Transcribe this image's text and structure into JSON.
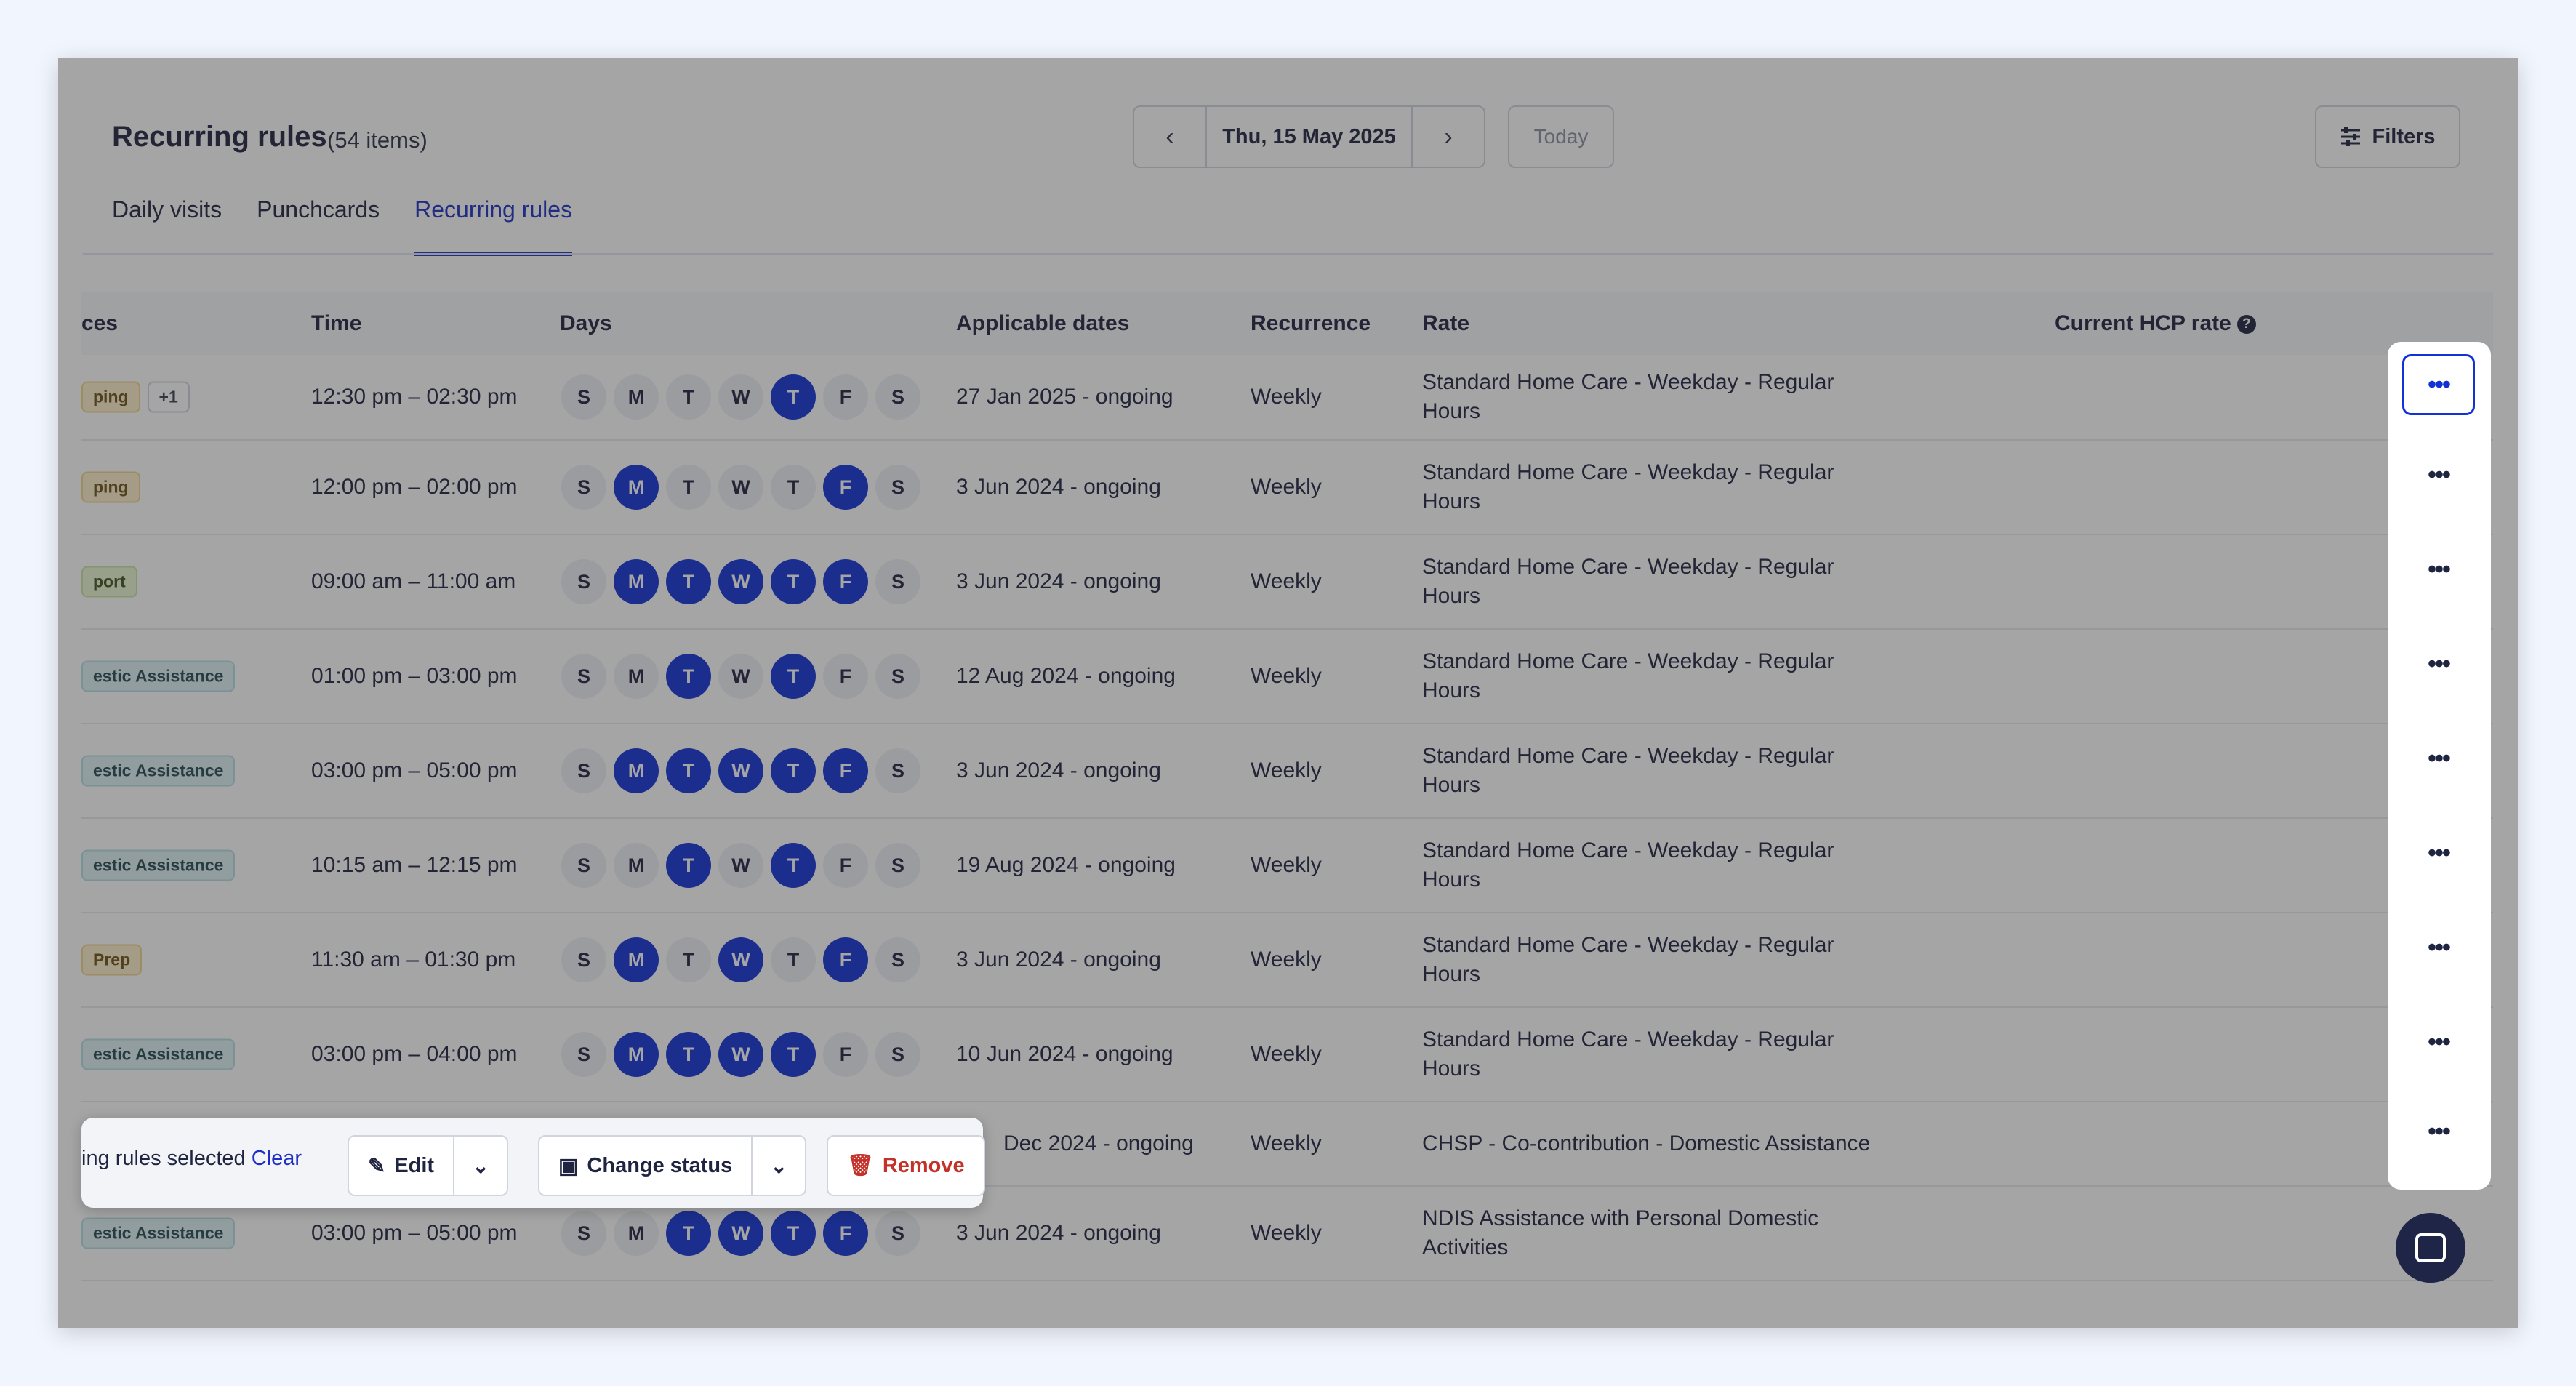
{
  "header": {
    "title": "Recurring rules",
    "count": "(54 items)",
    "date": "Thu, 15 May 2025",
    "today_label": "Today",
    "filters_label": "Filters"
  },
  "tabs": [
    {
      "label": "Daily visits"
    },
    {
      "label": "Punchcards"
    },
    {
      "label": "Recurring rules",
      "active": true
    }
  ],
  "table": {
    "columns": {
      "services": "ces",
      "time": "Time",
      "days": "Days",
      "dates": "Applicable dates",
      "recurrence": "Recurrence",
      "rate": "Rate",
      "hcp": "Current HCP rate"
    },
    "rows": [
      {
        "tag": "ping",
        "tag_color": "yellow",
        "extra": "+1",
        "time": "12:30 pm – 02:30 pm",
        "days": [
          0,
          0,
          0,
          0,
          1,
          0,
          0
        ],
        "dates": "27 Jan 2025 - ongoing",
        "recurrence": "Weekly",
        "rate": "Standard Home Care - Weekday - Regular Hours"
      },
      {
        "tag": "ping",
        "tag_color": "yellow",
        "time": "12:00 pm – 02:00 pm",
        "days": [
          0,
          1,
          0,
          0,
          0,
          1,
          0
        ],
        "dates": "3 Jun 2024 - ongoing",
        "recurrence": "Weekly",
        "rate": "Standard Home Care - Weekday - Regular Hours"
      },
      {
        "tag": "port",
        "tag_color": "green",
        "time": "09:00 am – 11:00 am",
        "days": [
          0,
          1,
          1,
          1,
          1,
          1,
          0
        ],
        "dates": "3 Jun 2024 - ongoing",
        "recurrence": "Weekly",
        "rate": "Standard Home Care - Weekday - Regular Hours"
      },
      {
        "tag": "estic Assistance",
        "tag_color": "teal",
        "time": "01:00 pm – 03:00 pm",
        "days": [
          0,
          0,
          1,
          0,
          1,
          0,
          0
        ],
        "dates": "12 Aug 2024 - ongoing",
        "recurrence": "Weekly",
        "rate": "Standard Home Care - Weekday - Regular Hours"
      },
      {
        "tag": "estic Assistance",
        "tag_color": "teal",
        "time": "03:00 pm – 05:00 pm",
        "days": [
          0,
          1,
          1,
          1,
          1,
          1,
          0
        ],
        "dates": "3 Jun 2024 - ongoing",
        "recurrence": "Weekly",
        "rate": "Standard Home Care - Weekday - Regular Hours"
      },
      {
        "tag": "estic Assistance",
        "tag_color": "teal",
        "time": "10:15 am – 12:15 pm",
        "days": [
          0,
          0,
          1,
          0,
          1,
          0,
          0
        ],
        "dates": "19 Aug 2024 - ongoing",
        "recurrence": "Weekly",
        "rate": "Standard Home Care - Weekday - Regular Hours"
      },
      {
        "tag": "Prep",
        "tag_color": "yellow",
        "time": "11:30 am – 01:30 pm",
        "days": [
          0,
          1,
          0,
          1,
          0,
          1,
          0
        ],
        "dates": "3 Jun 2024 - ongoing",
        "recurrence": "Weekly",
        "rate": "Standard Home Care - Weekday - Regular Hours"
      },
      {
        "tag": "estic Assistance",
        "tag_color": "teal",
        "time": "03:00 pm – 04:00 pm",
        "days": [
          0,
          1,
          1,
          1,
          1,
          0,
          0
        ],
        "dates": "10 Jun 2024 - ongoing",
        "recurrence": "Weekly",
        "rate": "Standard Home Care - Weekday - Regular Hours"
      },
      {
        "tag": "",
        "tag_color": "",
        "time": "",
        "days": [],
        "dates": "Dec 2024 - ongoing",
        "recurrence": "Weekly",
        "rate": "CHSP - Co-contribution - Domestic Assistance"
      },
      {
        "tag": "estic Assistance",
        "tag_color": "teal",
        "time": "03:00 pm – 05:00 pm",
        "days": [
          0,
          0,
          1,
          1,
          1,
          1,
          0
        ],
        "dates": "3 Jun 2024 - ongoing",
        "recurrence": "Weekly",
        "rate": "NDIS Assistance with Personal Domestic Activities"
      }
    ],
    "day_letters": [
      "S",
      "M",
      "T",
      "W",
      "T",
      "F",
      "S"
    ]
  },
  "bulk": {
    "selected_text": "ing rules selected",
    "clear_label": "Clear",
    "edit_label": "Edit",
    "change_status_label": "Change status",
    "remove_label": "Remove"
  },
  "row_action_label": "•••",
  "colors": {
    "accent": "#1d2fc4",
    "day_active": "#1232d6",
    "danger": "#c3322a",
    "chat": "#1e2547"
  }
}
